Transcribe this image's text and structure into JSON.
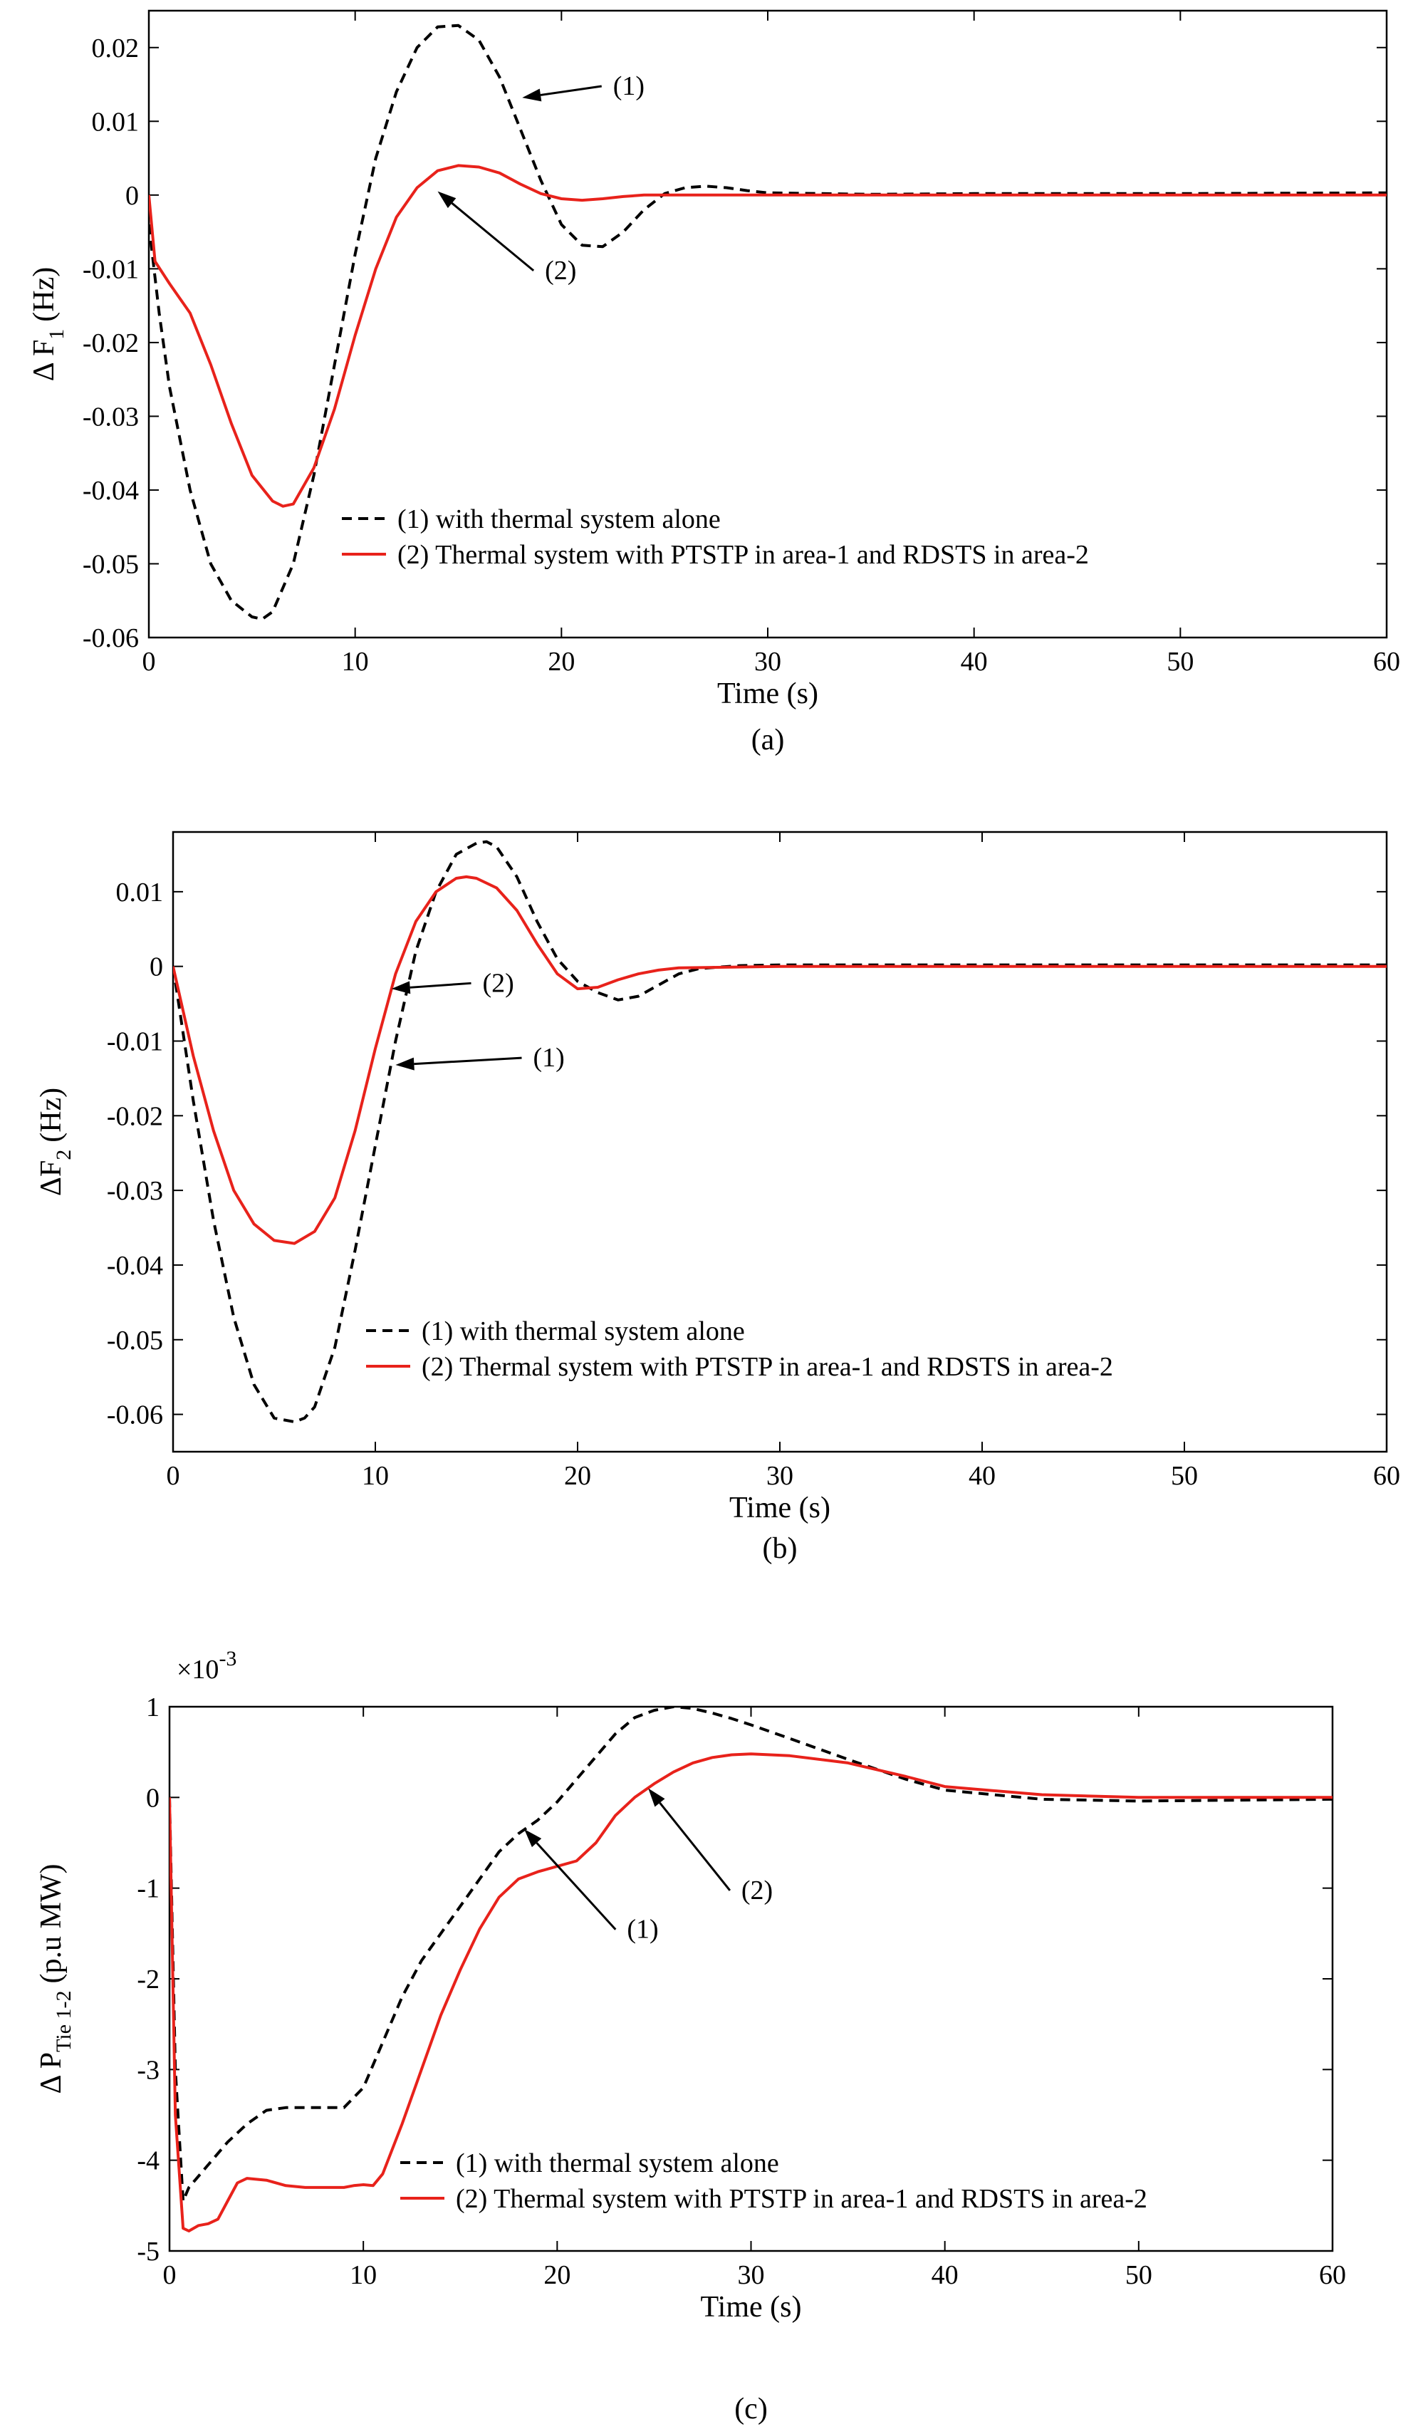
{
  "chart_data": [
    {
      "type": "line",
      "caption": "(a)",
      "xlabel": "Time (s)",
      "ylabel": "Δ F",
      "ylabel_sub": "1",
      "ylabel_unit": "(Hz)",
      "xlim": [
        0,
        60
      ],
      "ylim": [
        -0.06,
        0.025
      ],
      "xticks": [
        0,
        10,
        20,
        30,
        40,
        50,
        60
      ],
      "yticks": [
        -0.06,
        -0.05,
        -0.04,
        -0.03,
        -0.02,
        -0.01,
        0,
        0.01,
        0.02
      ],
      "ytick_labels": [
        "-0.06",
        "-0.05",
        "-0.04",
        "-0.03",
        "-0.02",
        "-0.01",
        "0",
        "0.01",
        "0.02"
      ],
      "exponent_label": "",
      "legend_placement": "bottom-center",
      "series": [
        {
          "name": "(1) with thermal system alone",
          "color": "#000000",
          "dash": "14,9",
          "x": [
            0,
            0.5,
            1,
            2,
            3,
            4,
            5,
            5.5,
            6,
            7,
            8,
            9,
            10,
            11,
            12,
            13,
            14,
            15,
            16,
            17,
            18,
            19,
            20,
            21,
            22,
            23,
            24,
            25,
            26,
            27,
            28,
            29,
            30,
            35,
            40,
            50,
            60
          ],
          "y": [
            -0.004,
            -0.016,
            -0.026,
            -0.04,
            -0.05,
            -0.055,
            -0.0572,
            -0.0575,
            -0.0565,
            -0.05,
            -0.038,
            -0.023,
            -0.008,
            0.005,
            0.014,
            0.02,
            0.0228,
            0.023,
            0.021,
            0.016,
            0.009,
            0.002,
            -0.004,
            -0.0068,
            -0.007,
            -0.005,
            -0.002,
            0.0002,
            0.001,
            0.0012,
            0.001,
            0.0006,
            0.0003,
            0.0001,
            0.0002,
            0.0002,
            0.0003
          ]
        },
        {
          "name": "(2) Thermal system with PTSTP in area-1 and RDSTS in area-2",
          "color": "#e8221b",
          "dash": "",
          "x": [
            0,
            0.3,
            1,
            2,
            3,
            4,
            5,
            6,
            6.5,
            7,
            8,
            9,
            10,
            11,
            12,
            13,
            14,
            15,
            16,
            17,
            18,
            19,
            20,
            21,
            22,
            23,
            24,
            25,
            30,
            40,
            50,
            60
          ],
          "y": [
            0,
            -0.009,
            -0.012,
            -0.016,
            -0.023,
            -0.031,
            -0.038,
            -0.0415,
            -0.0422,
            -0.0419,
            -0.037,
            -0.029,
            -0.019,
            -0.01,
            -0.003,
            0.001,
            0.0033,
            0.004,
            0.0038,
            0.003,
            0.0015,
            0.0002,
            -0.0005,
            -0.0007,
            -0.0005,
            -0.0002,
            0,
            0,
            0,
            0,
            0,
            0
          ]
        }
      ],
      "annotations": [
        {
          "label": "(1)",
          "target": [
            18.1,
            0.0132
          ],
          "text_at": [
            22.5,
            0.0136
          ]
        },
        {
          "label": "(2)",
          "target": [
            14.0,
            0.0005
          ],
          "text_at": [
            19.2,
            -0.0114
          ]
        }
      ]
    },
    {
      "type": "line",
      "caption": "(b)",
      "xlabel": "Time (s)",
      "ylabel": "ΔF",
      "ylabel_sub": "2",
      "ylabel_unit": "(Hz)",
      "xlim": [
        0,
        60
      ],
      "ylim": [
        -0.065,
        0.018
      ],
      "xticks": [
        0,
        10,
        20,
        30,
        40,
        50,
        60
      ],
      "yticks": [
        -0.06,
        -0.05,
        -0.04,
        -0.03,
        -0.02,
        -0.01,
        0,
        0.01
      ],
      "ytick_labels": [
        "-0.06",
        "-0.05",
        "-0.04",
        "-0.03",
        "-0.02",
        "-0.01",
        "0",
        "0.01"
      ],
      "exponent_label": "",
      "legend_placement": "bottom-center",
      "series": [
        {
          "name": "(1) with thermal system alone",
          "color": "#000000",
          "dash": "14,9",
          "x": [
            0,
            1,
            2,
            3,
            4,
            5,
            6,
            6.5,
            7,
            8,
            9,
            10,
            11,
            12,
            13,
            14,
            15,
            15.5,
            16,
            17,
            18,
            19,
            20,
            21,
            22,
            23,
            24,
            25,
            26,
            28,
            30,
            35,
            40,
            50,
            60
          ],
          "y": [
            0,
            -0.018,
            -0.034,
            -0.047,
            -0.056,
            -0.0605,
            -0.061,
            -0.0605,
            -0.059,
            -0.051,
            -0.038,
            -0.024,
            -0.01,
            0.002,
            0.01,
            0.015,
            0.0165,
            0.0167,
            0.016,
            0.012,
            0.006,
            0.001,
            -0.002,
            -0.0035,
            -0.0045,
            -0.004,
            -0.0025,
            -0.001,
            -0.0003,
            0.0001,
            0.0002,
            0.0002,
            0.0002,
            0.0002,
            0.0002
          ]
        },
        {
          "name": "(2) Thermal system with PTSTP in area-1 and RDSTS in area-2",
          "color": "#e8221b",
          "dash": "",
          "x": [
            0,
            1,
            2,
            3,
            4,
            5,
            6,
            7,
            8,
            9,
            10,
            11,
            12,
            13,
            14,
            14.5,
            15,
            16,
            17,
            18,
            19,
            20,
            21,
            22,
            23,
            24,
            25,
            30,
            40,
            50,
            60
          ],
          "y": [
            0,
            -0.012,
            -0.022,
            -0.03,
            -0.0345,
            -0.0367,
            -0.0371,
            -0.0355,
            -0.031,
            -0.022,
            -0.011,
            -0.001,
            0.006,
            0.01,
            0.0118,
            0.012,
            0.0118,
            0.0105,
            0.0075,
            0.003,
            -0.001,
            -0.003,
            -0.0028,
            -0.0018,
            -0.001,
            -0.0005,
            -0.0002,
            0,
            0,
            0,
            0
          ]
        }
      ],
      "annotations": [
        {
          "label": "(2)",
          "target": [
            10.8,
            -0.003
          ],
          "text_at": [
            15.3,
            -0.0034
          ]
        },
        {
          "label": "(1)",
          "target": [
            11.0,
            -0.0132
          ],
          "text_at": [
            17.8,
            -0.0134
          ]
        }
      ]
    },
    {
      "type": "line",
      "caption": "(c)",
      "xlabel": "Time (s)",
      "ylabel": "Δ P",
      "ylabel_sub": "Tie 1-2",
      "ylabel_unit": "(p.u MW)",
      "xlim": [
        0,
        60
      ],
      "ylim": [
        -5,
        1
      ],
      "xticks": [
        0,
        10,
        20,
        30,
        40,
        50,
        60
      ],
      "yticks": [
        -5,
        -4,
        -3,
        -2,
        -1,
        0,
        1
      ],
      "ytick_labels": [
        "-5",
        "-4",
        "-3",
        "-2",
        "-1",
        "0",
        "1"
      ],
      "exponent_label": "×10",
      "exponent_power": "-3",
      "legend_placement": "bottom-center",
      "series": [
        {
          "name": "(1) with thermal system alone",
          "color": "#000000",
          "dash": "14,9",
          "x": [
            0,
            0.3,
            0.7,
            1,
            2,
            3,
            4,
            5,
            6,
            7,
            8,
            9,
            10,
            11,
            12,
            13,
            14,
            15,
            16,
            17,
            18,
            19,
            20,
            21,
            22,
            23,
            24,
            25,
            26,
            27,
            28,
            29,
            30,
            32,
            35,
            38,
            40,
            45,
            50,
            55,
            60
          ],
          "y": [
            0,
            -3.0,
            -4.45,
            -4.3,
            -4.05,
            -3.8,
            -3.6,
            -3.45,
            -3.42,
            -3.42,
            -3.42,
            -3.42,
            -3.2,
            -2.7,
            -2.2,
            -1.8,
            -1.5,
            -1.2,
            -0.9,
            -0.6,
            -0.4,
            -0.25,
            -0.05,
            0.2,
            0.45,
            0.7,
            0.88,
            0.96,
            1.0,
            0.98,
            0.93,
            0.87,
            0.8,
            0.65,
            0.42,
            0.2,
            0.08,
            -0.02,
            -0.04,
            -0.03,
            -0.02
          ]
        },
        {
          "name": "(2) Thermal system with PTSTP in area-1 and RDSTS in area-2",
          "color": "#e8221b",
          "dash": "",
          "x": [
            0,
            0.3,
            0.7,
            1,
            1.5,
            2,
            2.5,
            3,
            3.5,
            4,
            5,
            6,
            7,
            8,
            9,
            9.5,
            10,
            10.5,
            11,
            12,
            13,
            14,
            15,
            16,
            17,
            18,
            19,
            20,
            21,
            22,
            23,
            24,
            25,
            26,
            27,
            28,
            29,
            30,
            32,
            35,
            38,
            40,
            45,
            50,
            55,
            60
          ],
          "y": [
            0,
            -3.5,
            -4.75,
            -4.78,
            -4.72,
            -4.7,
            -4.65,
            -4.45,
            -4.25,
            -4.2,
            -4.22,
            -4.28,
            -4.3,
            -4.3,
            -4.3,
            -4.28,
            -4.27,
            -4.28,
            -4.15,
            -3.6,
            -3.0,
            -2.4,
            -1.9,
            -1.45,
            -1.1,
            -0.9,
            -0.82,
            -0.76,
            -0.7,
            -0.5,
            -0.2,
            0.0,
            0.15,
            0.28,
            0.38,
            0.44,
            0.47,
            0.48,
            0.46,
            0.38,
            0.23,
            0.12,
            0.03,
            0.0,
            0.0,
            0.0
          ]
        }
      ],
      "annotations": [
        {
          "label": "(1)",
          "target": [
            18.3,
            -0.35
          ],
          "text_at": [
            23.6,
            -1.55
          ]
        },
        {
          "label": "(2)",
          "target": [
            24.7,
            0.1
          ],
          "text_at": [
            29.5,
            -1.12
          ]
        }
      ]
    }
  ]
}
